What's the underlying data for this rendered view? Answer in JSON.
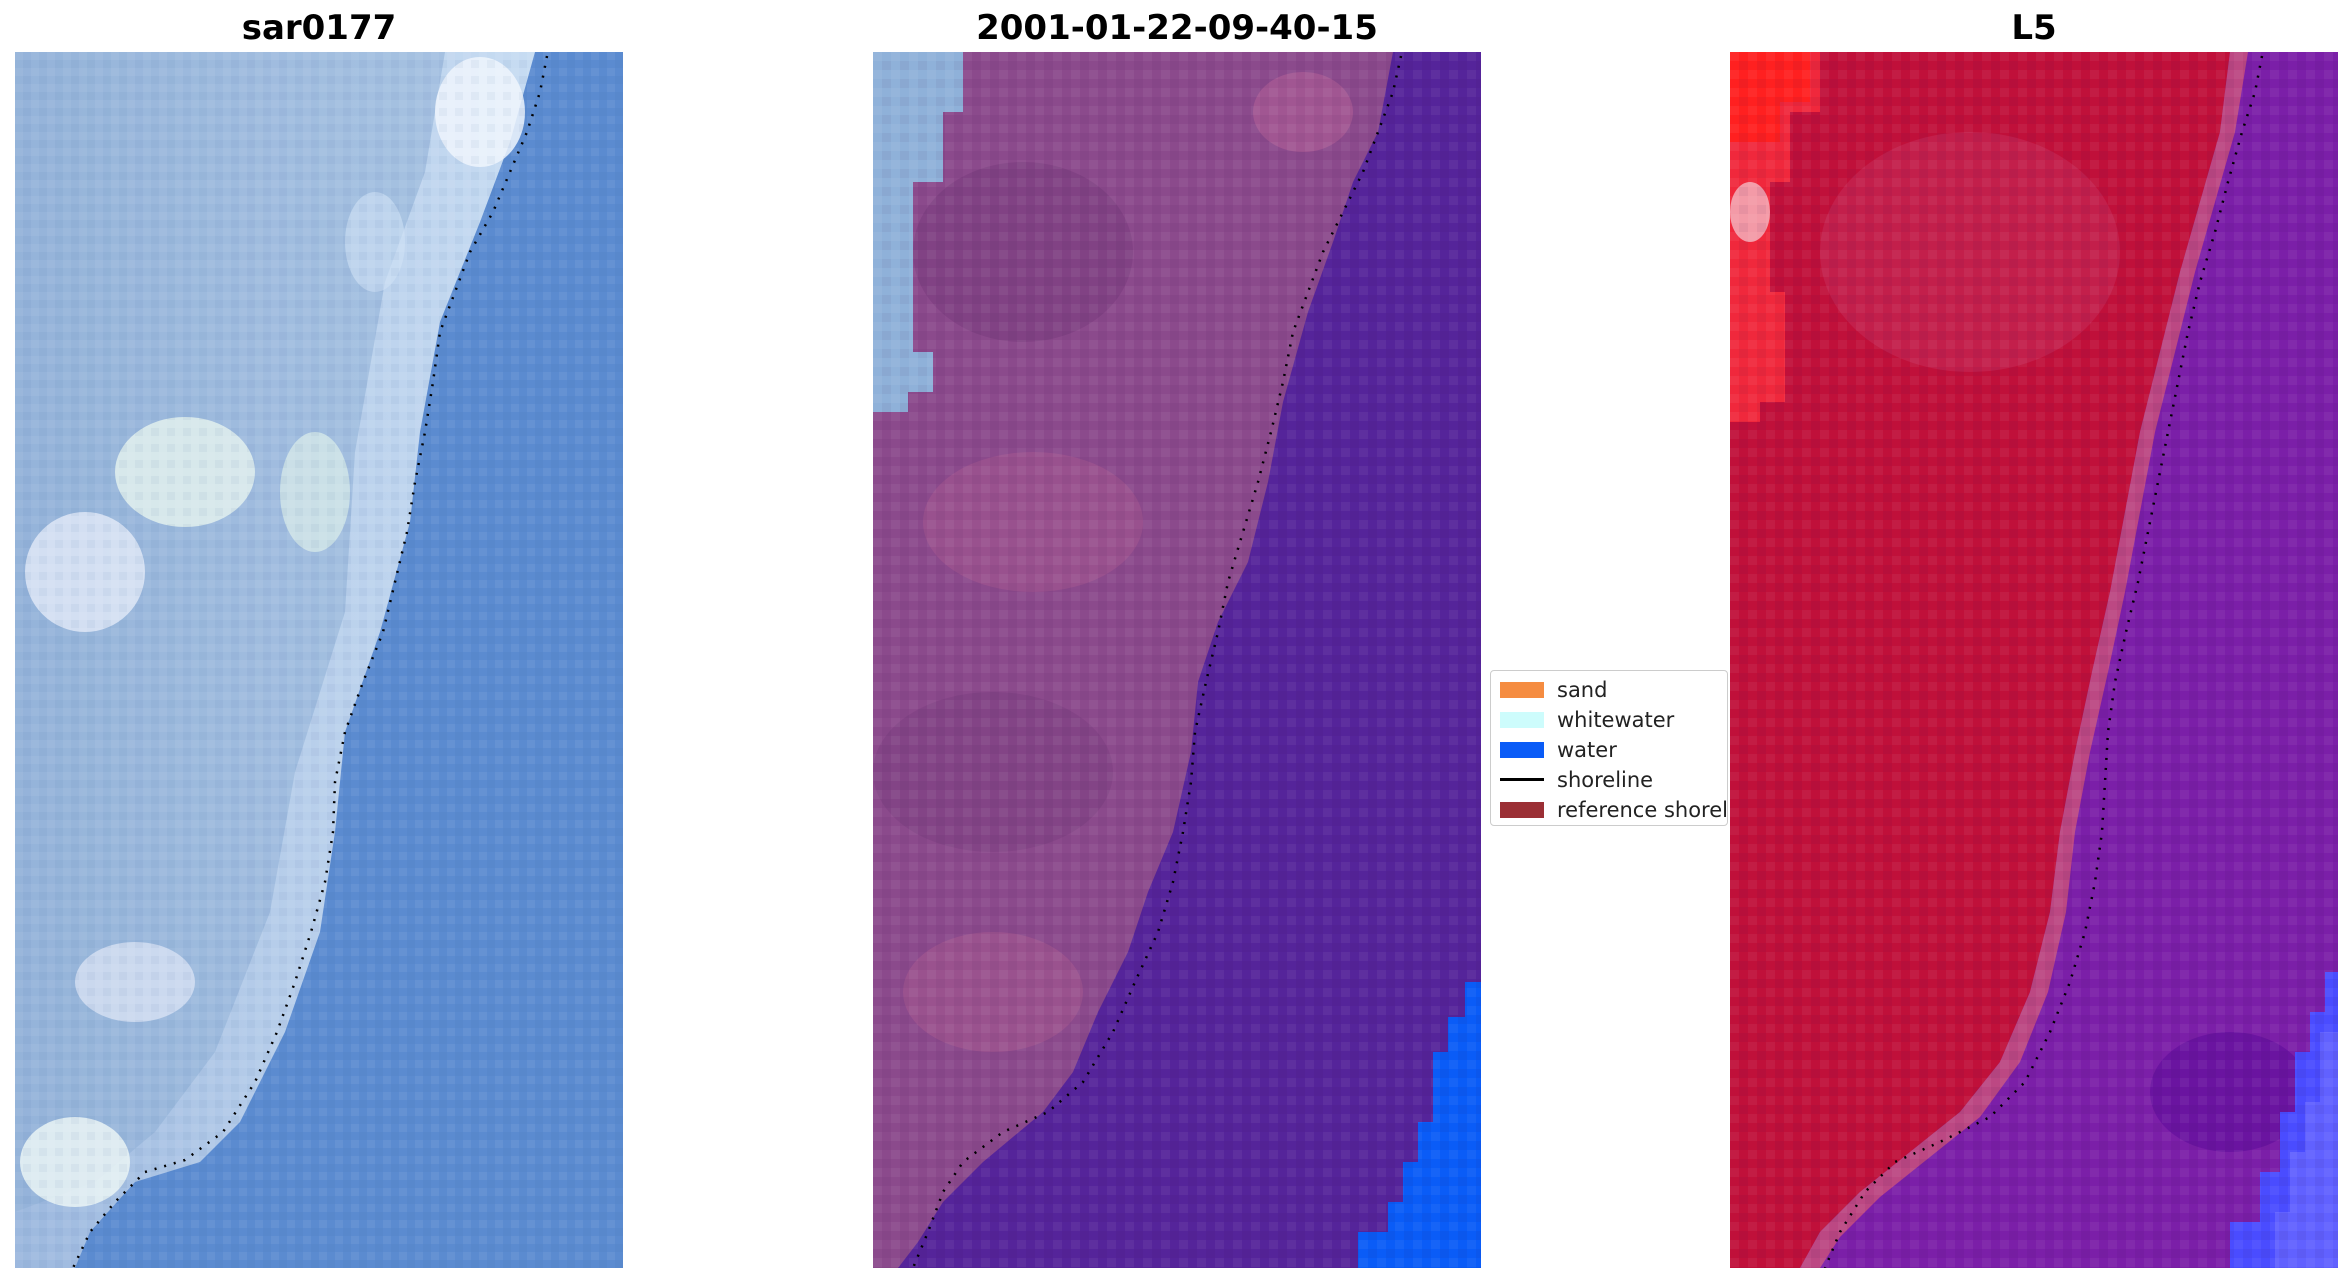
{
  "panels": {
    "rgb": {
      "title": "sar0177"
    },
    "classification": {
      "title": "2001-01-22-09-40-15"
    },
    "ndwi": {
      "title": "L5"
    }
  },
  "legend": {
    "items": [
      {
        "label": "sand",
        "color": "#f58c41",
        "kind": "patch"
      },
      {
        "label": "whitewater",
        "color": "#cdfcfc",
        "kind": "patch"
      },
      {
        "label": "water",
        "color": "#0a5cf7",
        "kind": "patch"
      },
      {
        "label": "shoreline",
        "color": "#000000",
        "kind": "line"
      },
      {
        "label": "reference shoreline",
        "color": "#9b2f35",
        "kind": "patch"
      }
    ]
  },
  "colors": {
    "rgb_water": "#5b8bd0",
    "rgb_land": "#a9c3e4",
    "class_land": "#8b4a8c",
    "class_water": "#55249a",
    "class_open_water": "#0a5cf7",
    "ndwi_land": "#c0103a",
    "ndwi_water": "#7b1fa8",
    "shoreline": "#000000"
  }
}
